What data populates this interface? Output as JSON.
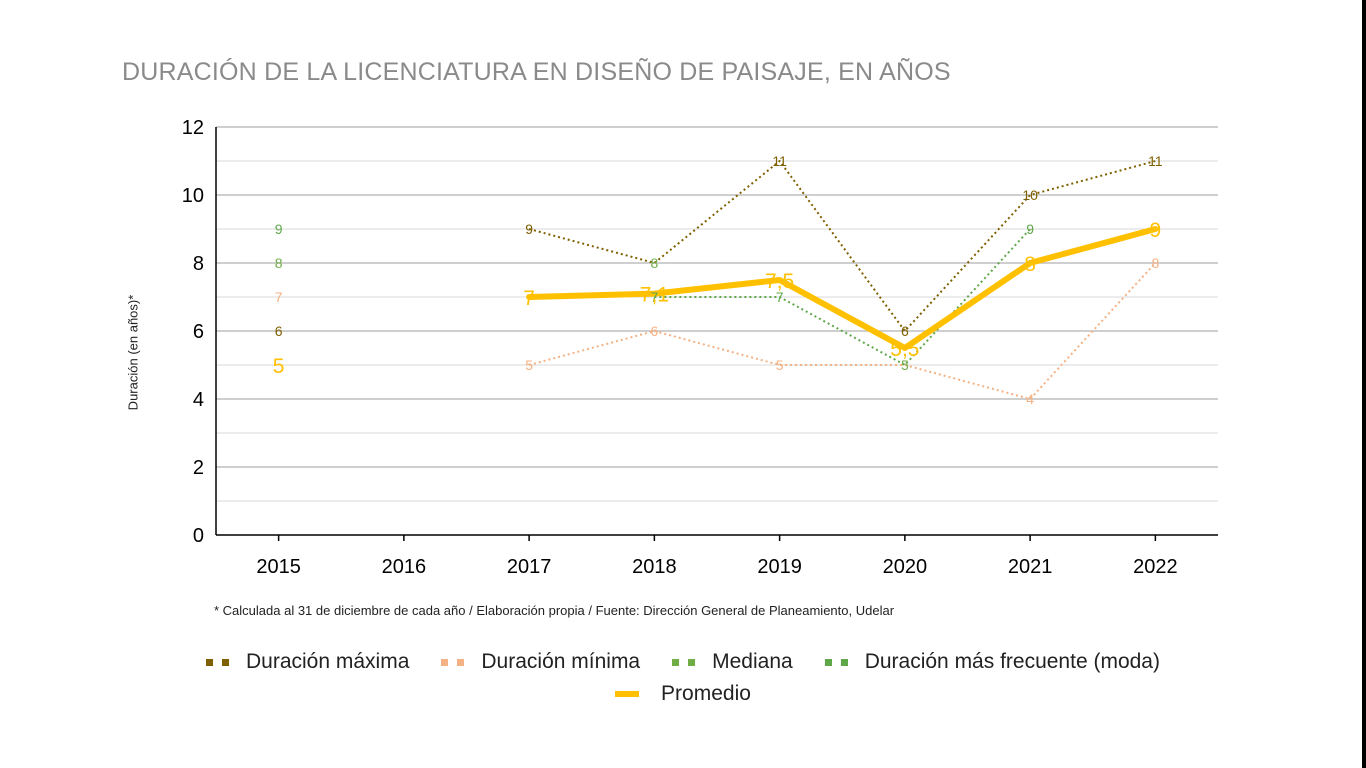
{
  "title": "DURACIÓN DE LA LICENCIATURA EN DISEÑO DE PAISAJE, EN AÑOS",
  "footnote": "* Calculada al 31 de diciembre de cada año / Elaboración propia / Fuente: Dirección General de Planeamiento, Udelar",
  "chart_data": {
    "type": "line",
    "title": "DURACIÓN DE LA LICENCIATURA EN DISEÑO DE PAISAJE, EN AÑOS",
    "xlabel": "",
    "ylabel": "Duración (en años)*",
    "ylim": [
      0,
      12
    ],
    "yticks": [
      "0",
      "2",
      "4",
      "6",
      "8",
      "10",
      "12"
    ],
    "categories": [
      "2015",
      "2016",
      "2017",
      "2018",
      "2019",
      "2020",
      "2021",
      "2022"
    ],
    "grid": true,
    "legend_position": "bottom",
    "series": [
      {
        "name": "Duración máxima",
        "color": "#7f6000",
        "style": "dotted",
        "values": [
          6,
          null,
          9,
          8,
          11,
          6,
          10,
          11
        ],
        "labels": [
          "6",
          "",
          "9",
          "",
          "11",
          "6",
          "10",
          "11"
        ]
      },
      {
        "name": "Duración mínima",
        "color": "#f4b183",
        "style": "dotted",
        "values": [
          7,
          null,
          5,
          6,
          5,
          5,
          4,
          8
        ],
        "labels": [
          "7",
          "",
          "5",
          "6",
          "5",
          "",
          "4",
          "8"
        ]
      },
      {
        "name": "Mediana",
        "color": "#70ad47",
        "style": "dotted",
        "values": [
          8,
          null,
          null,
          8,
          null,
          5,
          null,
          null
        ],
        "labels": [
          "8",
          "",
          "",
          "8",
          "",
          "5",
          "",
          ""
        ]
      },
      {
        "name": "Duración más frecuente (moda)",
        "color": "#5fa84a",
        "style": "dotted",
        "values": [
          9,
          null,
          null,
          7,
          7,
          5,
          9,
          null
        ],
        "labels": [
          "9",
          "",
          "",
          "7",
          "7",
          "",
          "9",
          ""
        ]
      },
      {
        "name": "Promedio",
        "color": "#ffc000",
        "style": "solid",
        "values": [
          5,
          null,
          7,
          7.1,
          7.5,
          5.5,
          8,
          9
        ],
        "labels": [
          "5",
          "",
          "7",
          "7,1",
          "7,5",
          "5,5",
          "8",
          "9"
        ]
      }
    ]
  }
}
